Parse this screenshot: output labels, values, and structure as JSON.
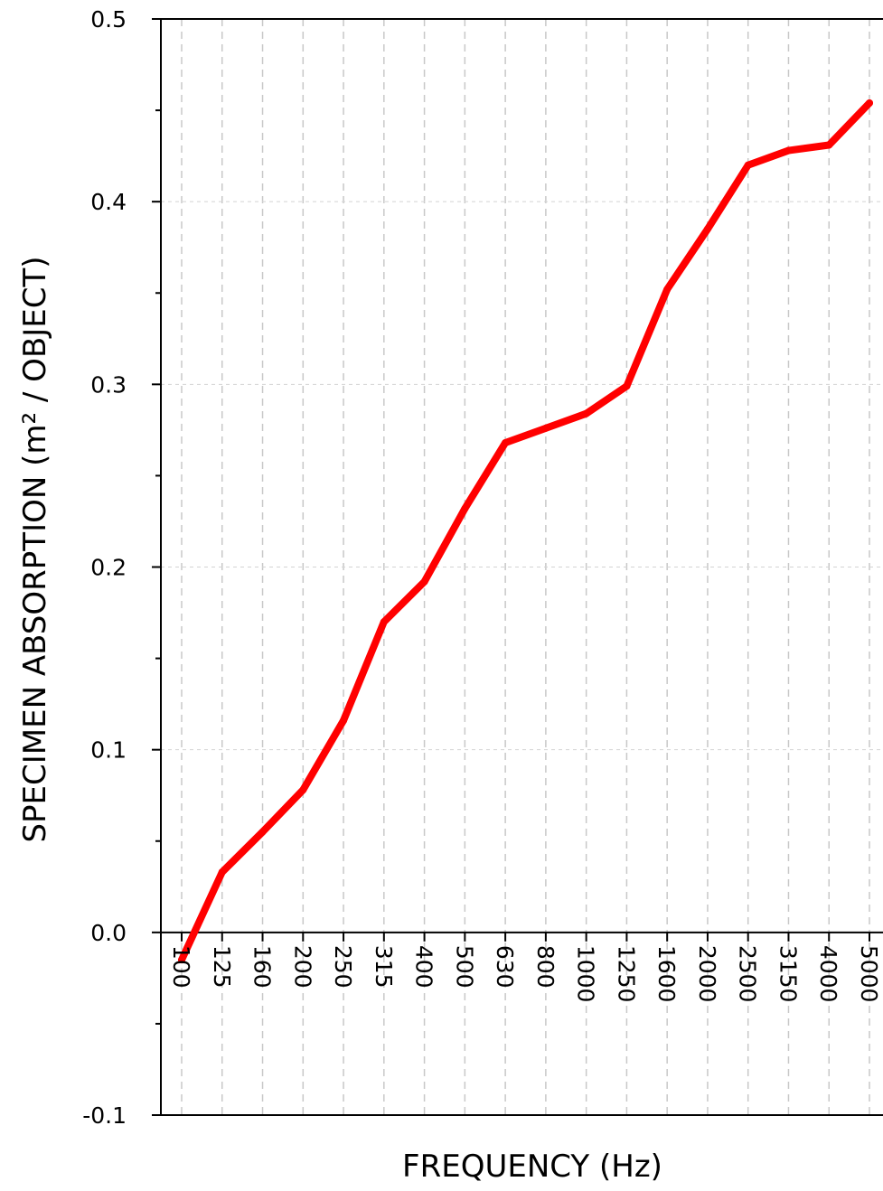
{
  "chart_data": {
    "type": "line",
    "title": "",
    "xlabel": "FREQUENCY (Hz)",
    "ylabel": "SPECIMEN ABSORPTION (m² / OBJECT)",
    "categories": [
      "100",
      "125",
      "160",
      "200",
      "250",
      "315",
      "400",
      "500",
      "630",
      "800",
      "1000",
      "1250",
      "1600",
      "2000",
      "2500",
      "3150",
      "4000",
      "5000"
    ],
    "series": [
      {
        "values": [
          -0.015,
          0.033,
          0.055,
          0.078,
          0.116,
          0.17,
          0.192,
          0.232,
          0.268,
          0.276,
          0.284,
          0.299,
          0.352,
          0.385,
          0.42,
          0.428,
          0.431,
          0.454
        ],
        "color": "#ff0000"
      }
    ],
    "ylim": [
      -0.1,
      0.5
    ],
    "yticks": [
      "-0.1",
      "0.0",
      "0.1",
      "0.2",
      "0.3",
      "0.4",
      "0.5"
    ],
    "ytick_values": [
      -0.1,
      0.0,
      0.1,
      0.2,
      0.3,
      0.4,
      0.5
    ],
    "grid": true,
    "legend": "none"
  }
}
